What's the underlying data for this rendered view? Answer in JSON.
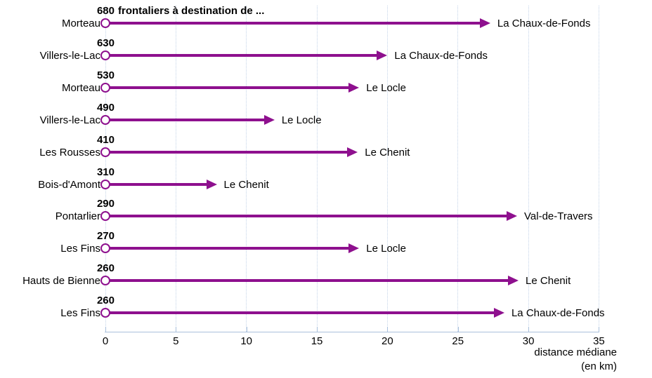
{
  "chart_data": {
    "type": "arrow",
    "title": "680 frontaliers à destination de ...",
    "title_suffix": "frontaliers à destination de ...",
    "xlabel_line1": "distance médiane",
    "xlabel_line2": "(en km)",
    "axis": {
      "min": 0,
      "max": 35,
      "step": 5
    },
    "x_ticks": [
      0,
      5,
      10,
      15,
      20,
      25,
      30,
      35
    ],
    "grid": "vertical-dotted",
    "legend": "none",
    "rows": [
      {
        "origin": "Morteau",
        "workers": 680,
        "destination": "La Chaux-de-Fonds",
        "distance_km": 27.3
      },
      {
        "origin": "Villers-le-Lac",
        "workers": 630,
        "destination": "La Chaux-de-Fonds",
        "distance_km": 20.0
      },
      {
        "origin": "Morteau",
        "workers": 530,
        "destination": "Le Locle",
        "distance_km": 18.0
      },
      {
        "origin": "Villers-le-Lac",
        "workers": 490,
        "destination": "Le Locle",
        "distance_km": 12.0
      },
      {
        "origin": "Les Rousses",
        "workers": 410,
        "destination": "Le Chenit",
        "distance_km": 17.9
      },
      {
        "origin": "Bois-d'Amont",
        "workers": 310,
        "destination": "Le Chenit",
        "distance_km": 7.9
      },
      {
        "origin": "Pontarlier",
        "workers": 290,
        "destination": "Val-de-Travers",
        "distance_km": 29.2
      },
      {
        "origin": "Les Fins",
        "workers": 270,
        "destination": "Le Locle",
        "distance_km": 18.0
      },
      {
        "origin": "Hauts de Bienne",
        "workers": 260,
        "destination": "Le Chenit",
        "distance_km": 29.3
      },
      {
        "origin": "Les Fins",
        "workers": 260,
        "destination": "La Chaux-de-Fonds",
        "distance_km": 28.3
      }
    ]
  },
  "colors": {
    "arrow": "#8e108e",
    "marker_fill": "#ffffff",
    "grid": "#c3d3e8",
    "axis": "#a9c0dc",
    "text": "#000000"
  }
}
